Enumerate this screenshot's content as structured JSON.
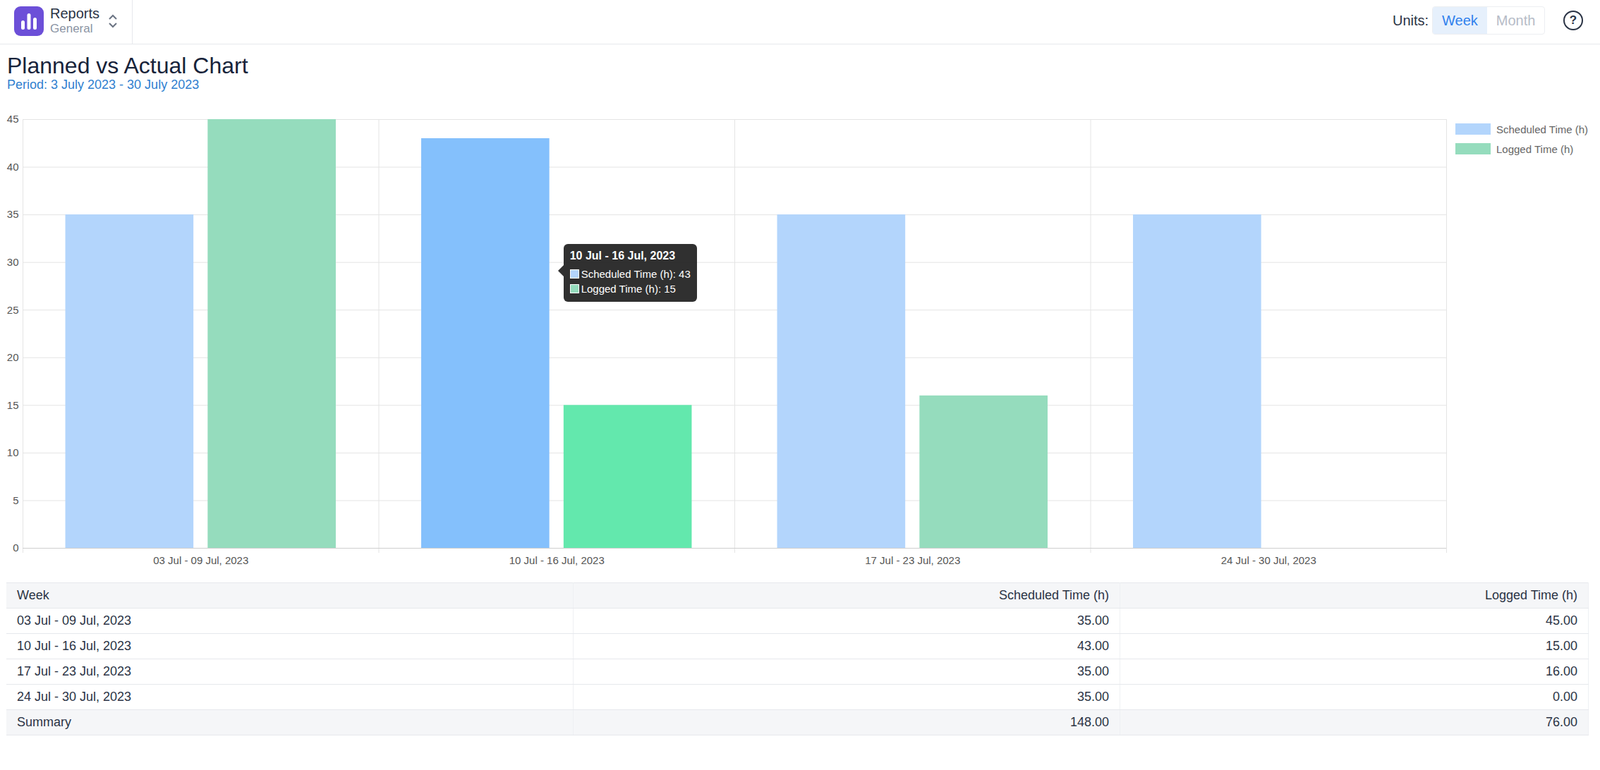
{
  "header": {
    "app": "Reports",
    "workspace": "General",
    "units_label": "Units:",
    "units": [
      "Week",
      "Month"
    ],
    "active_unit": "Week",
    "help": "?"
  },
  "chart_data": {
    "type": "bar",
    "title": "Planned vs Actual Chart",
    "subtitle": "Period: 3 July 2023 - 30 July 2023",
    "categories": [
      "03 Jul - 09 Jul, 2023",
      "10 Jul - 16 Jul, 2023",
      "17 Jul - 23 Jul, 2023",
      "24 Jul - 30 Jul, 2023"
    ],
    "series": [
      {
        "name": "Scheduled Time (h)",
        "color": "#b3d5fc",
        "colors": [
          "#b3d5fc",
          "#84c0fc",
          "#b3d5fc",
          "#b3d5fc"
        ],
        "values": [
          35,
          43,
          35,
          35
        ]
      },
      {
        "name": "Logged Time (h)",
        "color": "#95dcbd",
        "colors": [
          "#95dcbd",
          "#63e8ad",
          "#95dcbd",
          "#95dcbd"
        ],
        "values": [
          45,
          15,
          16,
          0
        ]
      }
    ],
    "ylim": [
      0,
      45
    ],
    "yticks": [
      0,
      5,
      10,
      15,
      20,
      25,
      30,
      35,
      40,
      45
    ],
    "grid": true,
    "legend": "right",
    "annotations": [
      {
        "title": "10 Jul - 16 Jul, 2023",
        "lines": [
          {
            "text": "Scheduled Time (h): 43",
            "color": "#b3d5fc"
          },
          {
            "text": "Logged Time (h): 15",
            "color": "#95dcbd"
          }
        ]
      }
    ]
  },
  "table": {
    "header": [
      "Week",
      "Scheduled Time (h)",
      "Logged Time (h)"
    ],
    "rows": [
      [
        "03 Jul - 09 Jul, 2023",
        "35.00",
        "45.00"
      ],
      [
        "10 Jul - 16 Jul, 2023",
        "43.00",
        "15.00"
      ],
      [
        "17 Jul - 23 Jul, 2023",
        "35.00",
        "16.00"
      ],
      [
        "24 Jul - 30 Jul, 2023",
        "35.00",
        "0.00"
      ]
    ],
    "summary": [
      "Summary",
      "148.00",
      "76.00"
    ]
  }
}
